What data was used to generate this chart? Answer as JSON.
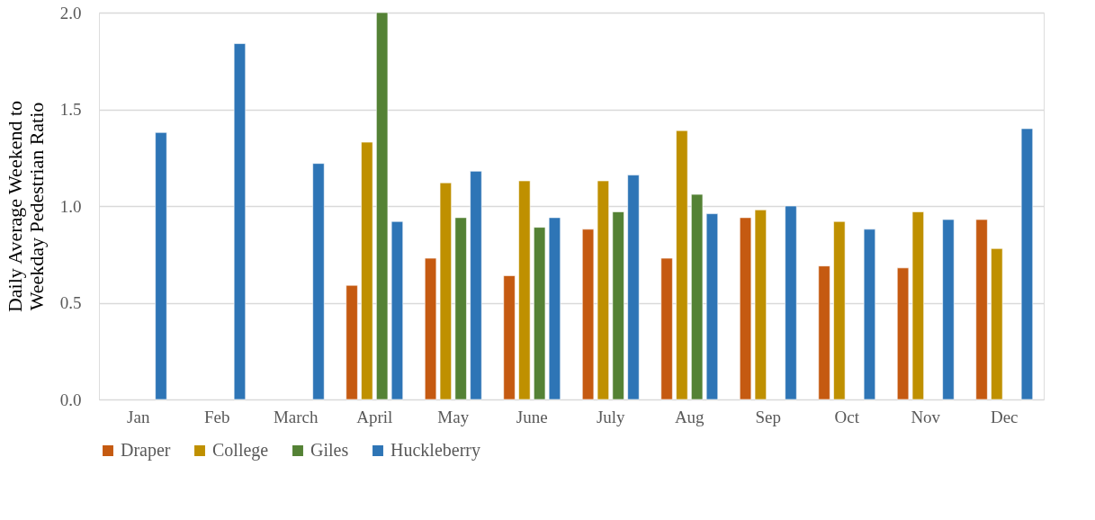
{
  "chart_data": {
    "type": "bar",
    "ylabel": "Daily Average  Weekend to Weekday Pedestrian Ratio",
    "categories": [
      "Jan",
      "Feb",
      "March",
      "April",
      "May",
      "June",
      "July",
      "Aug",
      "Sep",
      "Oct",
      "Nov",
      "Dec"
    ],
    "series": [
      {
        "name": "Draper",
        "color": "#c55a11",
        "values": [
          null,
          null,
          null,
          0.59,
          0.73,
          0.64,
          0.88,
          0.73,
          0.94,
          0.69,
          0.68,
          0.93
        ]
      },
      {
        "name": "College",
        "color": "#bf9000",
        "values": [
          null,
          null,
          null,
          1.33,
          1.12,
          1.13,
          1.13,
          1.39,
          0.98,
          0.92,
          0.97,
          0.78
        ]
      },
      {
        "name": "Giles",
        "color": "#548235",
        "values": [
          null,
          null,
          null,
          2.0,
          0.94,
          0.89,
          0.97,
          1.06,
          null,
          null,
          null,
          null
        ]
      },
      {
        "name": "Huckleberry",
        "color": "#2e75b6",
        "values": [
          1.38,
          1.84,
          1.22,
          0.92,
          1.18,
          0.94,
          1.16,
          0.96,
          1.0,
          0.88,
          0.93,
          1.4
        ]
      }
    ],
    "ylim": [
      0,
      2
    ],
    "yticks": [
      {
        "value": 0,
        "label": "0.0"
      },
      {
        "value": 0.5,
        "label": "0.5"
      },
      {
        "value": 1,
        "label": "1.0"
      },
      {
        "value": 1.5,
        "label": "1.5"
      },
      {
        "value": 2,
        "label": "2.0"
      }
    ],
    "grid": "y",
    "legend": "bottom"
  }
}
